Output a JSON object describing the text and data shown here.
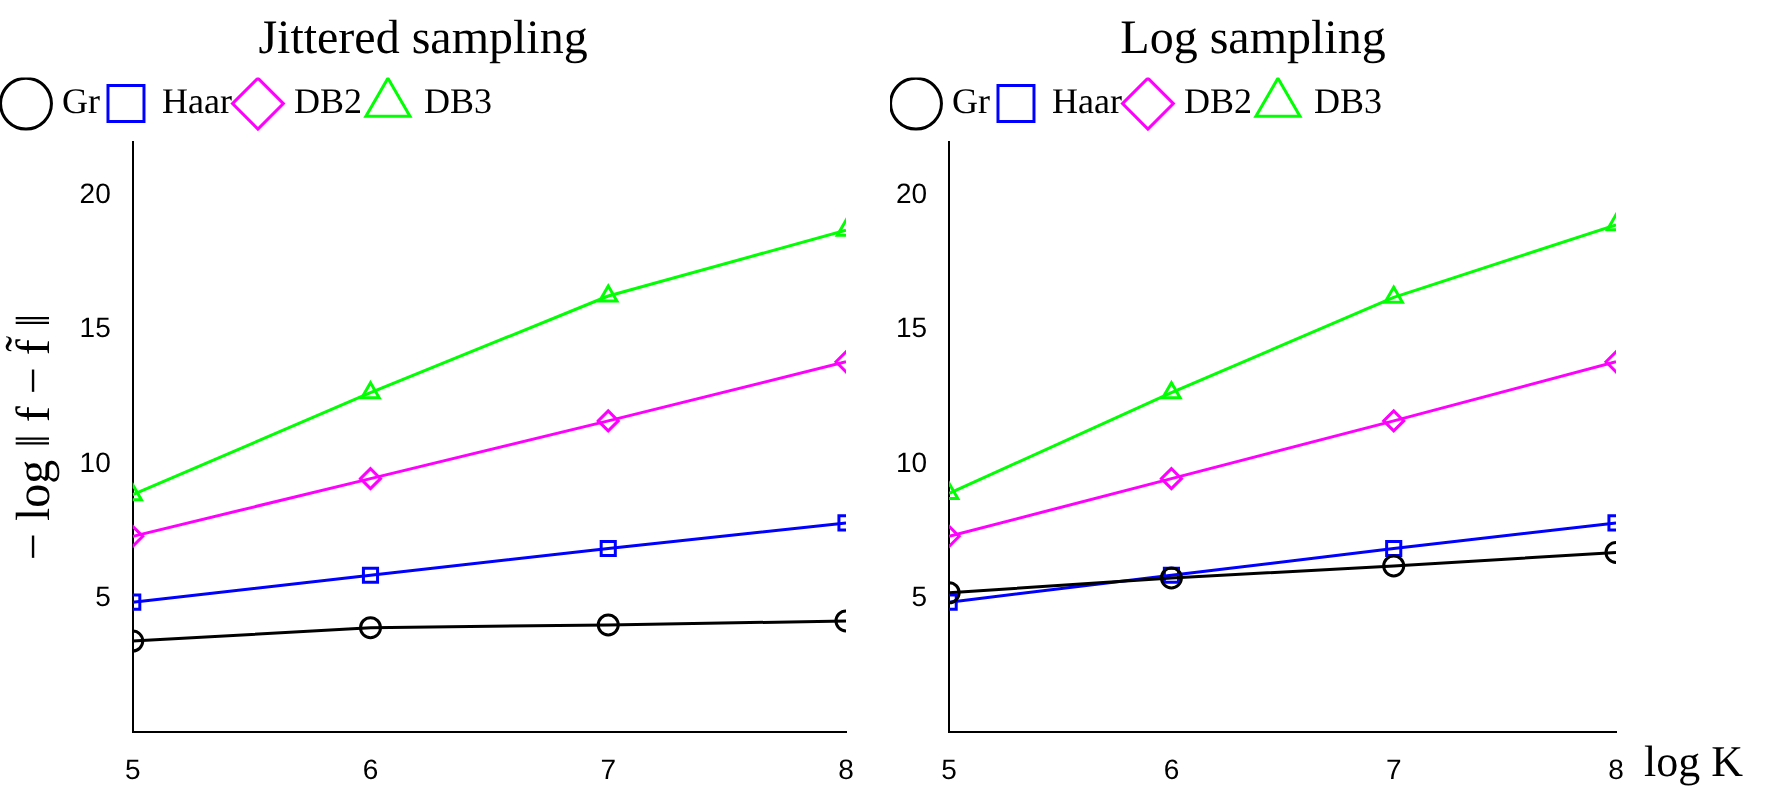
{
  "chart_data": [
    {
      "type": "line",
      "title": "Jittered sampling",
      "ylabel": "− log ‖ f − f̃ ‖",
      "x": [
        5,
        6,
        7,
        8
      ],
      "xlim": [
        5,
        8
      ],
      "xticks": [
        5,
        6,
        7,
        8
      ],
      "ylim": [
        0,
        22
      ],
      "yticks": [
        5,
        10,
        15,
        20
      ],
      "legend": "top left",
      "grid": false,
      "line_style": "solid",
      "series": [
        {
          "name": "Gr",
          "color": "#000000",
          "marker": "circle",
          "values": [
            3.4,
            3.9,
            4.0,
            4.15
          ]
        },
        {
          "name": "Haar",
          "color": "#0000ff",
          "marker": "square",
          "values": [
            4.85,
            5.85,
            6.85,
            7.8
          ]
        },
        {
          "name": "DB2",
          "color": "#ff00ff",
          "marker": "diamond",
          "values": [
            7.3,
            9.45,
            11.6,
            13.8
          ]
        },
        {
          "name": "DB3",
          "color": "#00ff00",
          "marker": "triangle",
          "values": [
            8.85,
            12.65,
            16.25,
            18.7
          ]
        }
      ]
    },
    {
      "type": "line",
      "title": "Log sampling",
      "xlabel": "log K",
      "x": [
        5,
        6,
        7,
        8
      ],
      "xlim": [
        5,
        8
      ],
      "xticks": [
        5,
        6,
        7,
        8
      ],
      "ylim": [
        0,
        22
      ],
      "yticks": [
        5,
        10,
        15,
        20
      ],
      "legend": "top left",
      "grid": false,
      "line_style": "solid",
      "series": [
        {
          "name": "Gr",
          "color": "#000000",
          "marker": "circle",
          "values": [
            5.2,
            5.75,
            6.2,
            6.7
          ]
        },
        {
          "name": "Haar",
          "color": "#0000ff",
          "marker": "square",
          "values": [
            4.85,
            5.85,
            6.85,
            7.8
          ]
        },
        {
          "name": "DB2",
          "color": "#ff00ff",
          "marker": "diamond",
          "values": [
            7.3,
            9.45,
            11.6,
            13.8
          ]
        },
        {
          "name": "DB3",
          "color": "#00ff00",
          "marker": "triangle",
          "values": [
            8.9,
            12.65,
            16.2,
            18.9
          ]
        }
      ]
    }
  ]
}
